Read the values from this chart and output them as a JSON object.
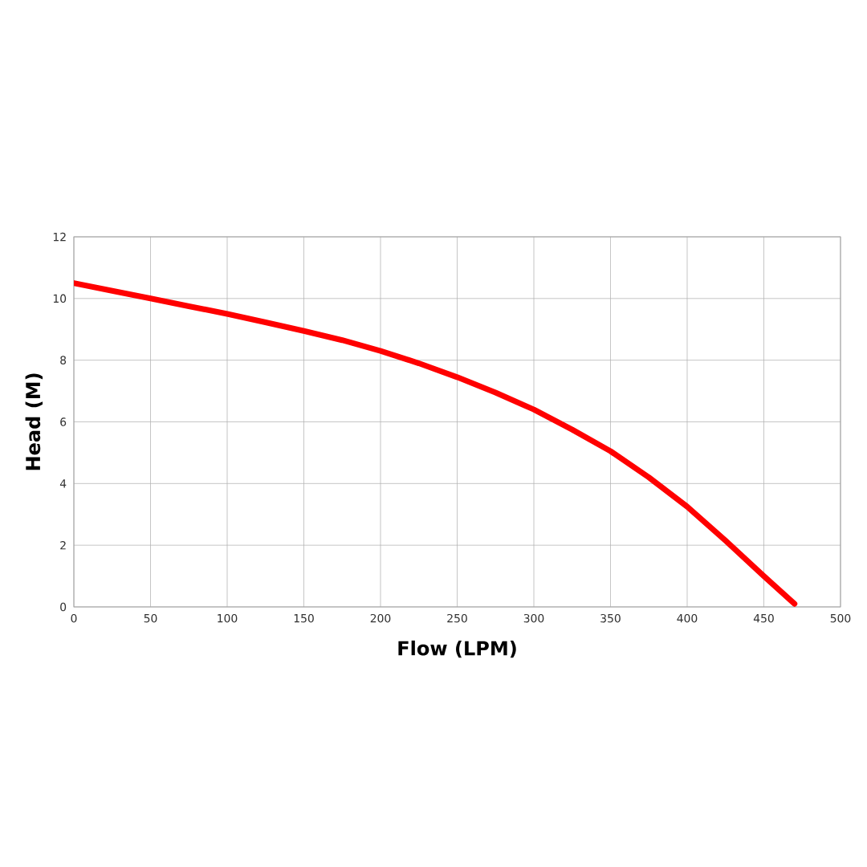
{
  "chart_data": {
    "type": "line",
    "xlabel": "Flow (LPM)",
    "ylabel": "Head (M)",
    "x": [
      0,
      25,
      50,
      75,
      100,
      125,
      150,
      175,
      200,
      225,
      250,
      275,
      300,
      325,
      350,
      375,
      400,
      425,
      450,
      470
    ],
    "series": [
      {
        "color": "#ff0000",
        "values": [
          10.5,
          10.25,
          10.0,
          9.75,
          9.5,
          9.23,
          8.95,
          8.65,
          8.3,
          7.9,
          7.45,
          6.95,
          6.4,
          5.75,
          5.05,
          4.2,
          3.25,
          2.15,
          1.0,
          0.1
        ]
      }
    ],
    "xlim": [
      0,
      500
    ],
    "xticks": [
      0,
      50,
      100,
      150,
      200,
      250,
      300,
      350,
      400,
      450,
      500
    ],
    "ylim": [
      0,
      12
    ],
    "yticks": [
      0,
      2,
      4,
      6,
      8,
      10,
      12
    ],
    "grid": true,
    "marker": "none",
    "line_style": "solid"
  }
}
